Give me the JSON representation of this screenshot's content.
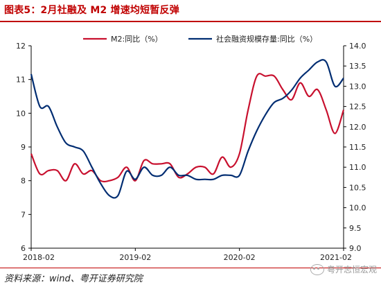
{
  "title": "图表5：2月社融及 M2 增速均短暂反弹",
  "source": "资料来源：wind、粤开证券研究院",
  "watermark": "粤开志恒宏观",
  "chart_data": {
    "type": "line",
    "x": [
      "2018-02",
      "2018-03",
      "2018-04",
      "2018-05",
      "2018-06",
      "2018-07",
      "2018-08",
      "2018-09",
      "2018-10",
      "2018-11",
      "2018-12",
      "2019-01",
      "2019-02",
      "2019-03",
      "2019-04",
      "2019-05",
      "2019-06",
      "2019-07",
      "2019-08",
      "2019-09",
      "2019-10",
      "2019-11",
      "2019-12",
      "2020-01",
      "2020-02",
      "2020-03",
      "2020-04",
      "2020-05",
      "2020-06",
      "2020-07",
      "2020-08",
      "2020-09",
      "2020-10",
      "2020-11",
      "2020-12",
      "2021-01",
      "2021-02"
    ],
    "xticks": [
      "2018-02",
      "2019-02",
      "2020-02",
      "2021-02"
    ],
    "series": [
      {
        "name": "M2:同比（%）",
        "axis": "left",
        "color": "#c8102e",
        "values": [
          8.8,
          8.2,
          8.3,
          8.3,
          8.0,
          8.5,
          8.2,
          8.3,
          8.0,
          8.0,
          8.1,
          8.4,
          8.0,
          8.6,
          8.5,
          8.5,
          8.5,
          8.1,
          8.2,
          8.4,
          8.4,
          8.2,
          8.7,
          8.4,
          8.8,
          10.1,
          11.1,
          11.1,
          11.1,
          10.7,
          10.4,
          10.9,
          10.5,
          10.7,
          10.1,
          9.4,
          10.1
        ]
      },
      {
        "name": "社会融资规模存量:同比（%）",
        "axis": "right",
        "color": "#002d72",
        "values": [
          13.3,
          12.5,
          12.5,
          12.0,
          11.6,
          11.5,
          11.4,
          11.0,
          10.6,
          10.3,
          10.3,
          10.9,
          10.7,
          11.0,
          10.8,
          10.8,
          11.0,
          10.8,
          10.8,
          10.7,
          10.7,
          10.7,
          10.8,
          10.8,
          10.8,
          11.4,
          11.9,
          12.3,
          12.6,
          12.7,
          12.9,
          13.2,
          13.4,
          13.6,
          13.6,
          13.0,
          13.2
        ]
      }
    ],
    "y_left": {
      "ticks": [
        6,
        7,
        8,
        9,
        10,
        11,
        12
      ],
      "range": [
        6,
        12
      ]
    },
    "y_right": {
      "ticks": [
        "9.0",
        "9.5",
        "10.0",
        "10.5",
        "11.0",
        "11.5",
        "12.0",
        "12.5",
        "13.0",
        "13.5",
        "14.0"
      ],
      "range": [
        9,
        14
      ]
    },
    "legend_placement": "top",
    "grid": false
  }
}
